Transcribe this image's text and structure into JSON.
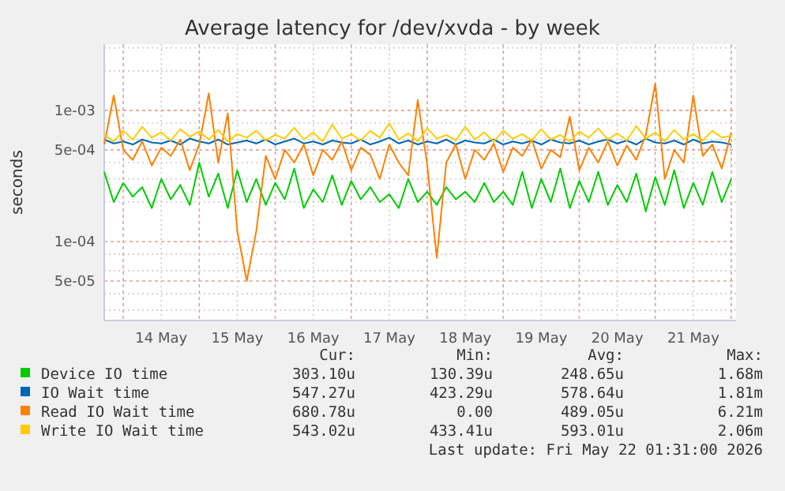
{
  "chart_data": {
    "type": "line",
    "title": "Average latency for /dev/xvda - by week",
    "ylabel": "seconds",
    "log": true,
    "grid": true,
    "legend": "bottom",
    "line_style": "solid",
    "marker": "none",
    "xlim": [
      "2026-05-13T18:00",
      "2026-05-22T01:30"
    ],
    "xticks": [
      {
        "value": "2026-05-14T00:00",
        "label": null
      },
      {
        "value": "2026-05-14T12:00",
        "label": "14 May"
      },
      {
        "value": "2026-05-15T00:00",
        "label": null
      },
      {
        "value": "2026-05-15T12:00",
        "label": "15 May"
      },
      {
        "value": "2026-05-16T00:00",
        "label": null
      },
      {
        "value": "2026-05-16T12:00",
        "label": "16 May"
      },
      {
        "value": "2026-05-17T00:00",
        "label": null
      },
      {
        "value": "2026-05-17T12:00",
        "label": "17 May"
      },
      {
        "value": "2026-05-18T00:00",
        "label": null
      },
      {
        "value": "2026-05-18T12:00",
        "label": "18 May"
      },
      {
        "value": "2026-05-19T00:00",
        "label": null
      },
      {
        "value": "2026-05-19T12:00",
        "label": "19 May"
      },
      {
        "value": "2026-05-20T00:00",
        "label": null
      },
      {
        "value": "2026-05-20T12:00",
        "label": "20 May"
      },
      {
        "value": "2026-05-21T00:00",
        "label": null
      },
      {
        "value": "2026-05-21T12:00",
        "label": "21 May"
      },
      {
        "value": "2026-05-22T00:00",
        "label": null
      }
    ],
    "ylim": [
      2.5e-05,
      0.0032
    ],
    "yticks": [
      {
        "value": 3e-05,
        "label": null
      },
      {
        "value": 4e-05,
        "label": null
      },
      {
        "value": 5e-05,
        "label": "5e-05"
      },
      {
        "value": 6e-05,
        "label": null
      },
      {
        "value": 8e-05,
        "label": null
      },
      {
        "value": 0.0001,
        "label": "1e-04"
      },
      {
        "value": 0.0002,
        "label": null
      },
      {
        "value": 0.0003,
        "label": null
      },
      {
        "value": 0.0004,
        "label": null
      },
      {
        "value": 0.0005,
        "label": "5e-04"
      },
      {
        "value": 0.0006,
        "label": null
      },
      {
        "value": 0.0008,
        "label": null
      },
      {
        "value": 0.001,
        "label": "1e-03"
      },
      {
        "value": 0.002,
        "label": null
      },
      {
        "value": 0.003,
        "label": null
      }
    ],
    "x": [
      "2026-05-13T18:00",
      "2026-05-13T21:00",
      "2026-05-14T00:00",
      "2026-05-14T03:00",
      "2026-05-14T06:00",
      "2026-05-14T09:00",
      "2026-05-14T12:00",
      "2026-05-14T15:00",
      "2026-05-14T18:00",
      "2026-05-14T21:00",
      "2026-05-15T00:00",
      "2026-05-15T03:00",
      "2026-05-15T06:00",
      "2026-05-15T09:00",
      "2026-05-15T12:00",
      "2026-05-15T15:00",
      "2026-05-15T18:00",
      "2026-05-15T21:00",
      "2026-05-16T00:00",
      "2026-05-16T03:00",
      "2026-05-16T06:00",
      "2026-05-16T09:00",
      "2026-05-16T12:00",
      "2026-05-16T15:00",
      "2026-05-16T18:00",
      "2026-05-16T21:00",
      "2026-05-17T00:00",
      "2026-05-17T03:00",
      "2026-05-17T06:00",
      "2026-05-17T09:00",
      "2026-05-17T12:00",
      "2026-05-17T15:00",
      "2026-05-17T18:00",
      "2026-05-17T21:00",
      "2026-05-18T00:00",
      "2026-05-18T03:00",
      "2026-05-18T06:00",
      "2026-05-18T09:00",
      "2026-05-18T12:00",
      "2026-05-18T15:00",
      "2026-05-18T18:00",
      "2026-05-18T21:00",
      "2026-05-19T00:00",
      "2026-05-19T03:00",
      "2026-05-19T06:00",
      "2026-05-19T09:00",
      "2026-05-19T12:00",
      "2026-05-19T15:00",
      "2026-05-19T18:00",
      "2026-05-19T21:00",
      "2026-05-20T00:00",
      "2026-05-20T03:00",
      "2026-05-20T06:00",
      "2026-05-20T09:00",
      "2026-05-20T12:00",
      "2026-05-20T15:00",
      "2026-05-20T18:00",
      "2026-05-20T21:00",
      "2026-05-21T00:00",
      "2026-05-21T03:00",
      "2026-05-21T06:00",
      "2026-05-21T09:00",
      "2026-05-21T12:00",
      "2026-05-21T15:00",
      "2026-05-21T18:00",
      "2026-05-21T21:00",
      "2026-05-22T00:00"
    ],
    "series": [
      {
        "name": "Device IO time",
        "color": "#00cc00",
        "values": [
          0.00034,
          0.0002,
          0.00028,
          0.00022,
          0.00026,
          0.00018,
          0.0003,
          0.00021,
          0.00027,
          0.00019,
          0.0004,
          0.00022,
          0.00033,
          0.00018,
          0.00035,
          0.0002,
          0.0003,
          0.00019,
          0.00028,
          0.00021,
          0.00036,
          0.00018,
          0.00025,
          0.0002,
          0.00032,
          0.00019,
          0.00029,
          0.00021,
          0.00026,
          0.0002,
          0.00023,
          0.00018,
          0.0003,
          0.0002,
          0.00024,
          0.00019,
          0.00026,
          0.00021,
          0.00024,
          0.0002,
          0.00028,
          0.0002,
          0.00024,
          0.00019,
          0.00034,
          0.00018,
          0.0003,
          0.0002,
          0.00036,
          0.00018,
          0.00029,
          0.0002,
          0.00034,
          0.00019,
          0.00027,
          0.0002,
          0.00033,
          0.00017,
          0.00031,
          0.00019,
          0.00035,
          0.00018,
          0.00028,
          0.00019,
          0.00034,
          0.0002,
          0.0003
        ]
      },
      {
        "name": "IO Wait time",
        "color": "#0066b3",
        "values": [
          0.0006,
          0.00056,
          0.00058,
          0.00055,
          0.0006,
          0.00057,
          0.00056,
          0.00059,
          0.00055,
          0.00061,
          0.00058,
          0.00056,
          0.0006,
          0.00055,
          0.00057,
          0.00059,
          0.00056,
          0.0006,
          0.00055,
          0.00058,
          0.00061,
          0.00056,
          0.00058,
          0.00055,
          0.00059,
          0.00057,
          0.00056,
          0.0006,
          0.00055,
          0.00058,
          0.00062,
          0.00056,
          0.00059,
          0.00055,
          0.00058,
          0.00056,
          0.0006,
          0.00055,
          0.00059,
          0.00057,
          0.00056,
          0.0006,
          0.00055,
          0.00058,
          0.00056,
          0.00059,
          0.00055,
          0.0006,
          0.00057,
          0.00056,
          0.00059,
          0.00055,
          0.00058,
          0.0006,
          0.00056,
          0.00059,
          0.00055,
          0.00061,
          0.00057,
          0.00056,
          0.00059,
          0.00055,
          0.0006,
          0.00056,
          0.00058,
          0.00057,
          0.00055
        ]
      },
      {
        "name": "Read IO Wait time",
        "color": "#ff8000",
        "values": [
          0.00055,
          0.0013,
          0.0005,
          0.00042,
          0.00058,
          0.00038,
          0.00052,
          0.00045,
          0.0006,
          0.00035,
          0.00055,
          0.00135,
          0.0004,
          0.00095,
          0.00012,
          5e-05,
          0.00012,
          0.00045,
          0.0003,
          0.0005,
          0.0004,
          0.00055,
          0.00032,
          0.0005,
          0.00042,
          0.00058,
          0.00035,
          0.00052,
          0.00046,
          0.0003,
          0.00055,
          0.0004,
          0.00032,
          0.0012,
          0.00038,
          7.5e-05,
          0.0004,
          0.00055,
          0.0003,
          0.0005,
          0.00042,
          0.00056,
          0.00034,
          0.00052,
          0.00045,
          0.0006,
          0.00036,
          0.0005,
          0.00044,
          0.0009,
          0.00035,
          0.00052,
          0.0004,
          0.00058,
          0.00038,
          0.00054,
          0.00042,
          0.00065,
          0.0016,
          0.0003,
          0.0005,
          0.0004,
          0.0013,
          0.00045,
          0.00055,
          0.00036,
          0.00068
        ]
      },
      {
        "name": "Write IO Wait time",
        "color": "#ffcc00",
        "values": [
          0.00065,
          0.00058,
          0.0007,
          0.0006,
          0.00075,
          0.00062,
          0.00068,
          0.00059,
          0.00072,
          0.00063,
          0.00069,
          0.0006,
          0.00071,
          0.00058,
          0.00066,
          0.00062,
          0.0007,
          0.00059,
          0.00065,
          0.00061,
          0.00074,
          0.0006,
          0.00068,
          0.00058,
          0.00078,
          0.00061,
          0.00066,
          0.00059,
          0.0007,
          0.00062,
          0.0008,
          0.0006,
          0.00067,
          0.00058,
          0.00073,
          0.00061,
          0.00065,
          0.00059,
          0.00075,
          0.0006,
          0.00068,
          0.00058,
          0.0007,
          0.00061,
          0.00066,
          0.00059,
          0.00072,
          0.0006,
          0.00065,
          0.00058,
          0.00069,
          0.00062,
          0.00073,
          0.0006,
          0.00067,
          0.00059,
          0.00076,
          0.00061,
          0.00068,
          0.00058,
          0.00071,
          0.0006,
          0.00066,
          0.00059,
          0.0007,
          0.00062,
          0.00064
        ]
      }
    ],
    "annotations": [
      "Cur:",
      "Min:",
      "Avg:",
      "Max:",
      "303.10u",
      "130.39u",
      "248.65u",
      "1.68m",
      "547.27u",
      "423.29u",
      "578.64u",
      "1.81m",
      "680.78u",
      "0.00",
      "489.05u",
      "6.21m",
      "543.02u",
      "433.41u",
      "593.01u",
      "2.06m",
      "Last update: Fri May 22 01:31:00 2026"
    ]
  }
}
